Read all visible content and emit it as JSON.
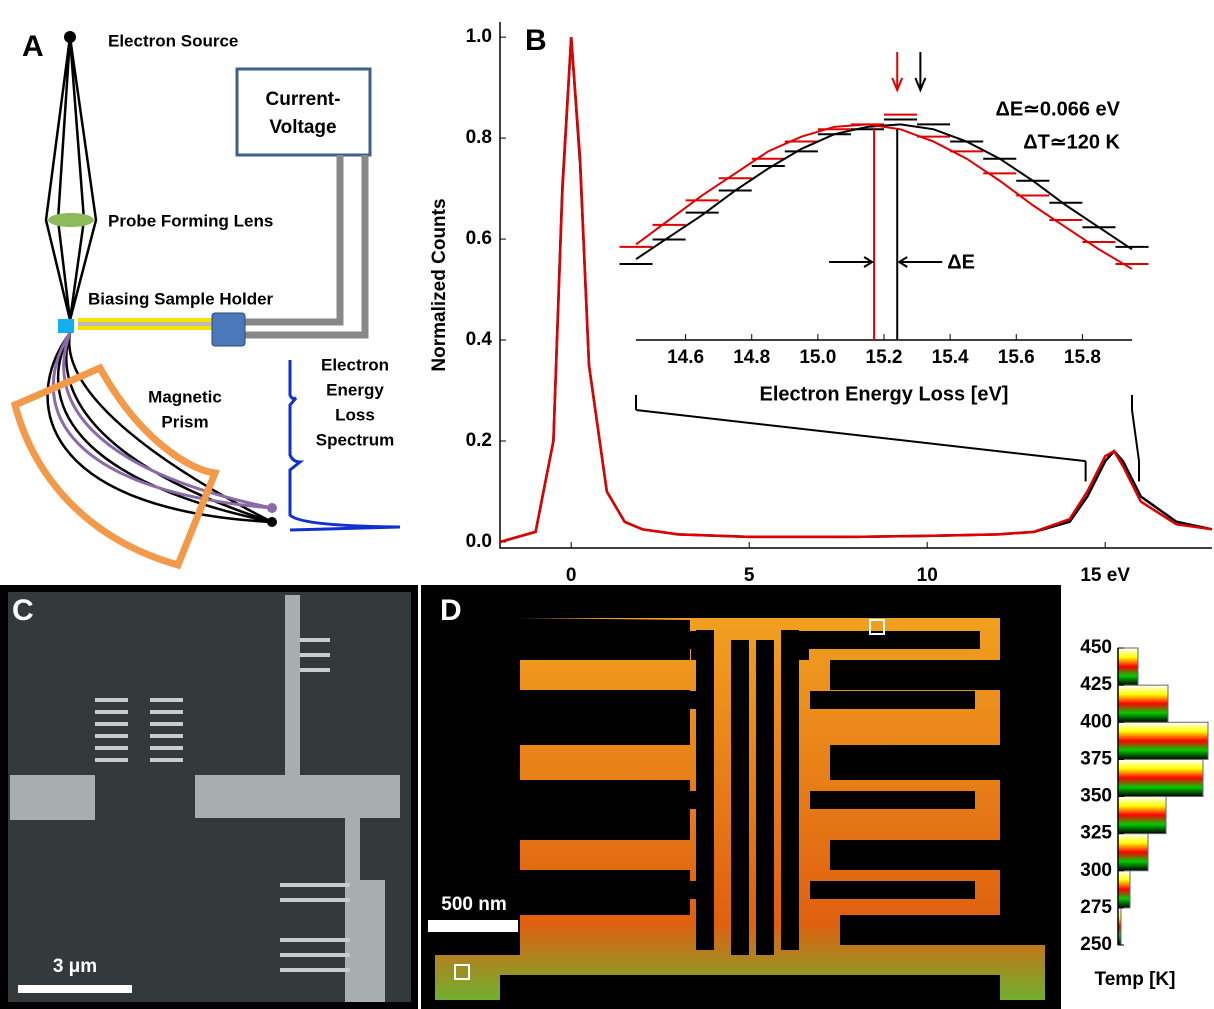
{
  "panel_a": {
    "label": "A",
    "electron_source": "Electron Source",
    "iv_box": [
      "Current-",
      "Voltage"
    ],
    "lens": "Probe Forming Lens",
    "holder": "Biasing Sample Holder",
    "prism": [
      "Magnetic",
      "Prism"
    ],
    "spectrum": [
      "Electron",
      "Energy",
      "Loss",
      "Spectrum"
    ]
  },
  "chart_data": {
    "type": "line",
    "panel_label": "B",
    "y_label": "Normalized Counts",
    "x": [
      -2,
      -1,
      -0.5,
      -0.25,
      0,
      0.25,
      0.5,
      1,
      1.5,
      2,
      3,
      5,
      8,
      10,
      12,
      13,
      14,
      14.5,
      15,
      15.25,
      15.5,
      16,
      17,
      18
    ],
    "series": [
      {
        "color": "#000000",
        "values": [
          0.0,
          0.02,
          0.2,
          0.7,
          1.0,
          0.75,
          0.35,
          0.1,
          0.04,
          0.025,
          0.015,
          0.01,
          0.01,
          0.012,
          0.015,
          0.02,
          0.04,
          0.09,
          0.16,
          0.18,
          0.16,
          0.09,
          0.04,
          0.025
        ]
      },
      {
        "color": "#e00000",
        "values": [
          0.0,
          0.02,
          0.2,
          0.69,
          1.0,
          0.76,
          0.35,
          0.1,
          0.04,
          0.025,
          0.015,
          0.01,
          0.01,
          0.012,
          0.015,
          0.02,
          0.045,
          0.1,
          0.17,
          0.18,
          0.15,
          0.08,
          0.035,
          0.025
        ]
      }
    ],
    "xlim": [
      -2,
      18
    ],
    "ylim": [
      -0.012,
      1.03
    ],
    "xticks": [
      0,
      5,
      10,
      {
        "value": 15,
        "label": "15 eV"
      }
    ],
    "yticks": [
      {
        "value": 0,
        "label": "0.0"
      },
      0.2,
      0.4,
      0.6,
      0.8,
      {
        "value": 1,
        "label": "1.0"
      }
    ],
    "inset": {
      "x_label": "Electron Energy Loss [eV]",
      "x": [
        14.45,
        14.55,
        14.65,
        14.75,
        14.85,
        14.95,
        15.05,
        15.15,
        15.25,
        15.35,
        15.45,
        15.55,
        15.65,
        15.75,
        15.85,
        15.95
      ],
      "series": [
        {
          "color": "#000000",
          "style": "step",
          "values": [
            0.31,
            0.41,
            0.52,
            0.61,
            0.71,
            0.77,
            0.84,
            0.86,
            0.9,
            0.88,
            0.81,
            0.74,
            0.65,
            0.56,
            0.46,
            0.38
          ]
        },
        {
          "color": "#e00000",
          "style": "step",
          "values": [
            0.38,
            0.47,
            0.57,
            0.66,
            0.74,
            0.81,
            0.86,
            0.88,
            0.92,
            0.83,
            0.77,
            0.68,
            0.59,
            0.49,
            0.4,
            0.31
          ]
        },
        {
          "color": "#000000",
          "style": "fit",
          "values": [
            0.33,
            0.42,
            0.51,
            0.61,
            0.7,
            0.78,
            0.84,
            0.87,
            0.88,
            0.86,
            0.81,
            0.74,
            0.65,
            0.55,
            0.46,
            0.37
          ]
        },
        {
          "color": "#e00000",
          "style": "fit",
          "values": [
            0.39,
            0.49,
            0.59,
            0.68,
            0.77,
            0.83,
            0.87,
            0.88,
            0.86,
            0.81,
            0.74,
            0.65,
            0.55,
            0.46,
            0.37,
            0.29
          ]
        }
      ],
      "xlim": [
        14.45,
        15.95
      ],
      "ylim": [
        0,
        1
      ],
      "xticks": [
        14.6,
        14.8,
        {
          "value": 15,
          "label": "15.0"
        },
        15.2,
        15.4,
        15.6,
        15.8
      ],
      "centroid_lines": [
        {
          "x": 15.17,
          "color": "#e00000"
        },
        {
          "x": 15.24,
          "color": "#000000"
        }
      ],
      "peak_arrows": [
        {
          "x": 15.24,
          "color": "#e00000"
        },
        {
          "x": 15.31,
          "color": "#000000"
        }
      ],
      "annotations": [
        "ΔE≃0.066 eV",
        "ΔT≃120 K",
        "ΔE"
      ]
    }
  },
  "panel_c": {
    "label": "C",
    "scale_bar": "3 μm"
  },
  "panel_d": {
    "label": "D",
    "scale_bar": "500 nm",
    "colorbar_label": "Temp [K]",
    "colorbar_ticks": [
      250,
      275,
      300,
      325,
      350,
      375,
      400,
      425,
      450
    ],
    "histogram": {
      "bins": [
        250,
        275,
        300,
        325,
        350,
        375,
        400,
        425,
        450
      ],
      "counts": [
        3,
        12,
        30,
        48,
        85,
        90,
        50,
        20
      ]
    }
  }
}
